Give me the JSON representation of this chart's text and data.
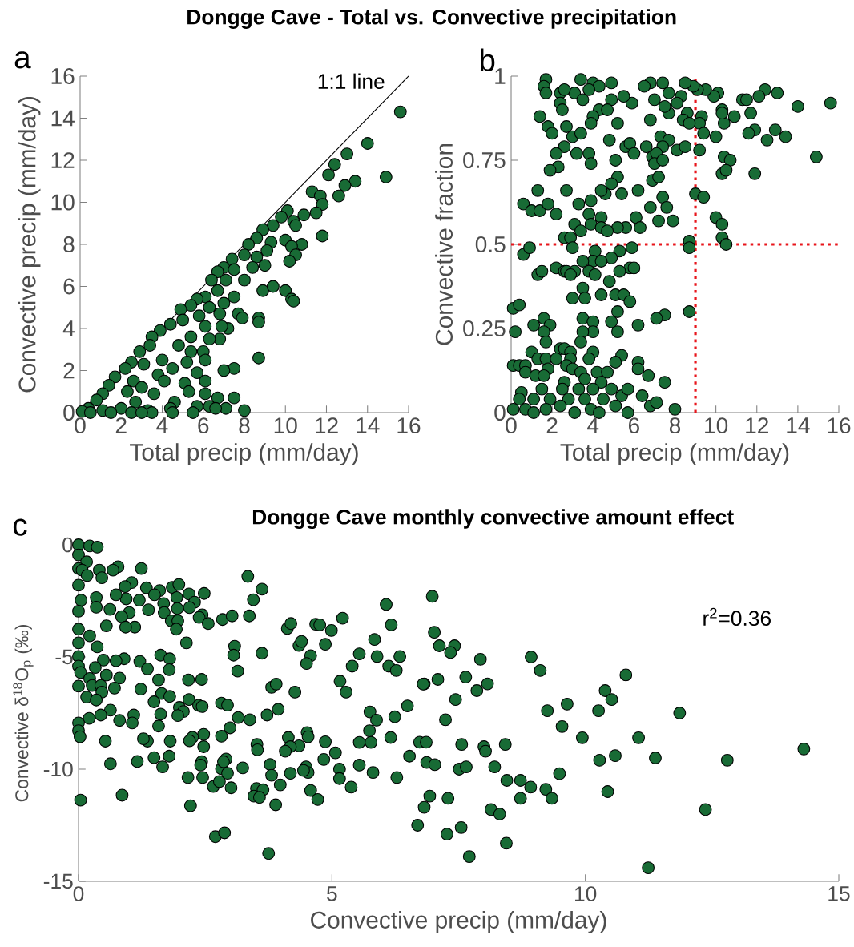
{
  "chart_data": [
    {
      "type": "scatter",
      "title": "Dongge Cave - Total vs. Convective precipitation",
      "xlabel": "Total precip (mm/day)",
      "ylabel": "Convective precip (mm/day)",
      "xlim": [
        0,
        16
      ],
      "ylim": [
        0,
        16
      ],
      "xticks": [
        0,
        2,
        4,
        6,
        8,
        10,
        12,
        14,
        16
      ],
      "yticks": [
        0,
        2,
        4,
        6,
        8,
        10,
        12,
        14,
        16
      ],
      "annotations": [
        "a",
        "1:1 line"
      ],
      "series": [
        {
          "type": "line",
          "marker": "none",
          "color": "#000000",
          "x": [
            0,
            16
          ],
          "values": [
            0,
            16
          ]
        },
        {
          "marker": "circle",
          "color": "#186b35",
          "x": [
            15.6,
            14,
            13,
            12.4,
            12.1,
            14.9,
            13.4,
            12.9,
            12.6,
            11.3,
            11.7,
            11.8,
            11.5,
            10.9,
            10.1,
            10.4,
            10.5,
            9.8,
            9.4,
            8.9,
            11.8,
            10.8,
            10,
            10.3,
            10.5,
            10.2,
            9.3,
            9.1,
            8.6,
            8.2,
            8.6,
            8.0,
            9.0,
            8.4,
            7.4,
            7.0,
            7.5,
            6.7,
            7.1,
            6.4,
            8.0,
            8.9,
            9.4,
            10.0,
            10.3,
            10.4,
            6.7,
            7.5,
            7.0,
            6.1,
            5.7,
            5.4,
            4.9,
            6.3,
            6.8,
            7.7,
            7.9,
            8.7,
            8.7,
            7.2,
            6.9,
            6.1,
            5.8,
            5.0,
            4.4,
            3.9,
            3.5,
            6.8,
            6.3,
            5.4,
            4.8,
            3.4,
            2.9,
            5.4,
            6.0,
            4.0,
            2.5,
            8.7,
            6.1,
            5.2,
            3.1,
            2.2,
            7.5,
            7.0,
            4.5,
            5.7,
            3.8,
            1.7,
            1.4,
            2.6,
            4.1,
            6.1,
            5.1,
            2.3,
            3.0,
            6.1,
            5.3,
            3.6,
            1.1,
            0.8,
            6.7,
            7.5,
            2.7,
            4.6,
            6.3,
            7.1,
            8.0,
            5.7,
            4.4,
            3.3,
            2.0,
            1.1,
            0.4,
            0.1,
            0.5,
            1.5,
            2.5,
            3.5,
            4.5,
            5.5,
            6.6,
            3.0
          ],
          "values": [
            14.3,
            12.8,
            12.3,
            11.8,
            11.3,
            11.2,
            11,
            10.8,
            10.3,
            10.5,
            10.3,
            9.9,
            9.5,
            9.4,
            9.6,
            9.1,
            8.9,
            9.3,
            8.9,
            8.7,
            8.4,
            8.0,
            8.2,
            7.9,
            7.5,
            7.2,
            8.1,
            7.7,
            8.3,
            8.0,
            7.4,
            7.5,
            7.0,
            6.9,
            7.3,
            6.9,
            6.8,
            6.7,
            6.3,
            6.3,
            6.3,
            5.8,
            6.0,
            5.8,
            5.4,
            5.3,
            5.8,
            5.5,
            5.2,
            5.5,
            5.4,
            5.1,
            4.9,
            5.0,
            4.7,
            4.7,
            4.5,
            4.5,
            4.3,
            4.0,
            4.1,
            4.1,
            4.6,
            4.4,
            4.2,
            3.9,
            3.6,
            3.5,
            3.5,
            3.6,
            3.2,
            3.2,
            2.9,
            2.9,
            2.9,
            2.5,
            2.4,
            2.6,
            2.5,
            2.4,
            2.3,
            2.1,
            2.1,
            2.0,
            2.1,
            1.9,
            1.8,
            1.7,
            1.3,
            1.5,
            1.5,
            1.5,
            1.4,
            1.0,
            1.2,
            0.9,
            1.0,
            0.9,
            0.9,
            0.6,
            0.7,
            0.7,
            0.5,
            0.5,
            0.3,
            0.2,
            0.1,
            0.3,
            0.2,
            0.1,
            0.2,
            0.1,
            0.2,
            0.05,
            0,
            0,
            0,
            0,
            0,
            0,
            0.2,
            0
          ]
        }
      ]
    },
    {
      "type": "scatter",
      "xlabel": "Total precip (mm/day)",
      "ylabel": "Convective fraction",
      "xlim": [
        0,
        16
      ],
      "ylim": [
        0,
        1
      ],
      "xticks": [
        0,
        2,
        4,
        6,
        8,
        10,
        12,
        14,
        16
      ],
      "yticks": [
        0,
        0.25,
        0.5,
        0.75,
        1
      ],
      "annotations": [
        "b"
      ],
      "ref_lines": [
        {
          "axis": "x",
          "value": 9,
          "color": "#e8151b",
          "line_style": "dotted"
        },
        {
          "axis": "y",
          "value": 0.5,
          "color": "#e8151b",
          "line_style": "dotted"
        }
      ],
      "series": [
        {
          "marker": "circle",
          "color": "#186b35",
          "x": [
            15.6,
            14,
            14.9,
            13,
            12.4,
            12.1,
            13.4,
            12.9,
            12.5,
            11.3,
            11.5,
            11.7,
            11.9,
            11.6,
            11.9,
            10.9,
            10.4,
            10.3,
            10.3,
            10.0,
            10.4,
            10.7,
            10.3,
            10.5,
            10.1,
            9.9,
            9.5,
            9.1,
            9.3,
            9.2,
            9.4,
            9.2,
            8.9,
            8.5,
            8.3,
            8.1,
            8.6,
            8.4,
            8.7,
            7.4,
            7.0,
            6.8,
            6.5,
            7.7,
            7.7,
            7.5,
            7.3,
            7.7,
            7.4,
            8.1,
            8.5,
            6.8,
            6.6,
            6.9,
            7.1,
            7.0,
            7.4,
            6.9,
            7.2,
            6.2,
            7.4,
            7.6,
            6.8,
            7.9,
            7.2,
            6.1,
            6.3,
            9.0,
            9.4,
            10.0,
            10.3,
            10.3,
            10.5,
            8.7,
            8.7,
            8.7,
            7.5,
            7.1,
            6.2,
            6.2,
            6.7,
            7.5,
            6.2,
            6.4,
            6.8,
            7.1,
            8.0,
            5.9,
            5.5,
            5.2,
            5.6,
            5.8,
            6.0,
            5.1,
            5.2,
            5.4,
            4.6,
            4.4,
            4.9,
            5.8,
            6.0,
            5.9,
            5.6,
            5.2,
            5.3,
            4.9,
            5.3,
            4.8,
            5.1,
            5.5,
            5.8,
            5.2,
            4.9,
            5.2,
            5.4,
            5.1,
            4.0,
            3.4,
            4.9,
            4.3,
            3.8,
            3.1,
            2.4,
            2.6,
            3.5,
            2.4,
            2.5,
            4.3,
            4.0,
            4.9,
            4.7,
            1.7,
            1.6,
            1.7,
            1.4,
            1.8,
            2.0,
            2.7,
            3.0,
            3.4,
            3.9,
            4.8,
            2.6,
            2.2,
            3.2,
            3.8,
            3.9,
            2.3,
            1.9,
            1.3,
            2.7,
            0.6,
            1.0,
            1.4,
            1.8,
            2.2,
            3.3,
            3.8,
            3.9,
            3.1,
            3.4,
            4.4,
            3.9,
            4.4,
            4.7,
            2.6,
            2.9,
            3.0,
            0.6,
            0.9,
            4.1,
            4.0,
            3.5,
            4.4,
            2.2,
            2.6,
            2.7,
            3.1,
            3.8,
            1.3,
            1.5,
            2.9,
            4.1,
            3.5,
            4.4,
            3.0,
            3.6,
            3.5,
            4.0,
            4.0,
            3.5,
            3.4,
            0.1,
            0.4,
            0.2,
            1.1,
            1.6,
            1.9,
            1.6,
            1.7,
            1.0,
            2.4,
            2.6,
            2.9,
            4.0,
            1.3,
            1.7,
            2.2,
            2.9,
            3.8,
            0.1,
            0.4,
            0.7,
            0.7,
            1.8,
            2.7,
            3.0,
            3.4,
            4.2,
            4.7,
            1.2,
            1.6,
            2.6,
            3.6,
            4.4,
            0.5,
            1.5,
            2.5,
            3.3,
            4.0,
            4.9,
            0.4,
            1.1,
            1.9,
            2.8,
            3.6,
            4.5,
            5.4,
            5.7,
            0.1,
            0.7,
            1.1,
            1.7,
            2.4,
            3.1,
            3.9,
            4.3,
            5.1,
            5.7
          ],
          "values": [
            0.92,
            0.91,
            0.76,
            0.95,
            0.96,
            0.94,
            0.82,
            0.84,
            0.81,
            0.93,
            0.93,
            0.89,
            0.84,
            0.83,
            0.71,
            0.88,
            0.86,
            0.9,
            0.89,
            0.82,
            0.76,
            0.75,
            0.71,
            0.72,
            0.95,
            0.94,
            0.96,
            0.96,
            0.88,
            0.86,
            0.83,
            0.78,
            0.97,
            0.98,
            0.94,
            0.92,
            0.89,
            0.87,
            0.86,
            0.98,
            0.93,
            0.98,
            0.97,
            0.95,
            0.89,
            0.91,
            0.82,
            0.81,
            0.79,
            0.78,
            0.79,
            0.87,
            0.79,
            0.76,
            0.77,
            0.74,
            0.75,
            0.69,
            0.7,
            0.66,
            0.64,
            0.61,
            0.61,
            0.57,
            0.57,
            0.58,
            0.55,
            0.65,
            0.64,
            0.58,
            0.56,
            0.52,
            0.5,
            0.51,
            0.49,
            0.3,
            0.29,
            0.28,
            0.26,
            0.15,
            0.11,
            0.09,
            0.13,
            0.05,
            0.02,
            0.03,
            0.01,
            0.92,
            0.94,
            0.86,
            0.79,
            0.8,
            0.77,
            0.75,
            0.7,
            0.65,
            0.65,
            0.66,
            0.68,
            0.43,
            0.43,
            0.49,
            0.55,
            0.55,
            0.48,
            0.46,
            0.42,
            0.39,
            0.35,
            0.35,
            0.33,
            0.3,
            0.27,
            0.24,
            0.17,
            0.15,
            0.98,
            0.99,
            0.98,
            0.97,
            0.96,
            0.95,
            0.95,
            0.96,
            0.93,
            0.92,
            0.9,
            0.9,
            0.88,
            0.93,
            0.9,
            0.99,
            0.97,
            0.95,
            0.88,
            0.85,
            0.83,
            0.85,
            0.82,
            0.83,
            0.86,
            0.81,
            0.79,
            0.77,
            0.77,
            0.77,
            0.74,
            0.73,
            0.72,
            0.66,
            0.66,
            0.62,
            0.6,
            0.6,
            0.62,
            0.59,
            0.62,
            0.59,
            0.63,
            0.56,
            0.54,
            0.58,
            0.56,
            0.55,
            0.54,
            0.52,
            0.52,
            0.49,
            0.47,
            0.49,
            0.48,
            0.45,
            0.45,
            0.45,
            0.43,
            0.42,
            0.42,
            0.42,
            0.42,
            0.41,
            0.42,
            0.41,
            0.41,
            0.37,
            0.35,
            0.34,
            0.34,
            0.28,
            0.27,
            0.24,
            0.24,
            0.21,
            0.31,
            0.32,
            0.24,
            0.26,
            0.28,
            0.26,
            0.24,
            0.21,
            0.18,
            0.19,
            0.19,
            0.18,
            0.18,
            0.16,
            0.16,
            0.16,
            0.16,
            0.16,
            0.14,
            0.14,
            0.14,
            0.12,
            0.13,
            0.14,
            0.13,
            0.12,
            0.12,
            0.12,
            0.11,
            0.11,
            0.09,
            0.1,
            0.09,
            0.06,
            0.07,
            0.07,
            0.07,
            0.07,
            0.07,
            0.04,
            0.04,
            0.04,
            0.04,
            0.04,
            0.04,
            0.05,
            0.07,
            0.01,
            0.01,
            0.0,
            0.01,
            0.02,
            0.0,
            0.01,
            0.0,
            0.02,
            0.0
          ]
        }
      ]
    },
    {
      "type": "scatter",
      "title": "Dongge Cave monthly convective amount effect",
      "xlabel": "Convective precip (mm/day)",
      "ylabel": "Convective δ$^{18}$O$_{p}$ (‰)",
      "xlim": [
        0,
        15
      ],
      "ylim": [
        -15,
        0
      ],
      "xticks": [
        0,
        5,
        10,
        15
      ],
      "yticks": [
        -15,
        -10,
        -5,
        0
      ],
      "annotations": [
        "c",
        "r$^{2}$=0.36"
      ],
      "series": [
        {
          "marker": "circle",
          "color": "#186b35",
          "x": [
            6.98,
            7.02,
            7.12,
            7.42,
            7.34,
            7.93,
            8.93,
            9.11,
            10.8,
            6.82,
            7.09,
            7.64,
            8.07,
            7.86,
            10.39,
            10.52,
            7.44,
            9.64,
            9.25,
            10.26,
            11.86,
            7.24,
            9.54,
            9.94,
            11.05,
            14.31,
            6.73,
            6.86,
            7.56,
            8.0,
            8.03,
            8.42,
            10.59,
            10.28,
            11.38,
            12.8,
            6.87,
            7.03,
            7.51,
            7.65,
            8.21,
            9.49,
            8.45,
            8.72,
            8.92,
            9.22,
            9.34,
            8.72,
            10.44,
            6.93,
            7.29,
            6.82,
            8.14,
            8.31,
            12.37,
            6.69,
            7.27,
            7.55,
            8.44,
            7.71,
            11.24,
            0,
            0.22,
            0.37,
            0,
            0.16,
            0,
            0.07,
            0.41,
            0.78,
            0.68,
            1.24,
            0.17,
            0.46,
            0,
            1.05,
            0.92,
            1.34,
            1.6,
            1.85,
            1.98,
            1.5,
            1.2,
            0.94,
            0.74,
            0.05,
            0.35,
            1.94,
            2.18,
            2.48,
            1.68,
            2.29,
            1.95,
            2.19,
            1.38,
            0.62,
            0.35,
            0,
            1.69,
            1.0,
            0.85,
            2.44,
            2.38,
            2.56,
            2.84,
            3.03,
            3.34,
            3.62,
            3.45,
            3.37,
            1.83,
            1.96,
            1.93,
            1.11,
            0.93,
            0.55,
            0,
            0.22,
            0,
            0.37,
            2.13,
            3.08,
            3.06,
            3.62,
            1.62,
            1.8,
            0.9,
            0.74,
            0.49,
            0,
            0,
            0.33,
            1.21,
            1.36,
            1.79,
            0.04,
            0.55,
            0.81,
            0.22,
            0,
            0.27,
            0.44,
            0.71,
            0.46,
            1.58,
            2.17,
            2.43,
            1.23,
            1.64,
            1.8,
            1.49,
            2.18,
            3.14,
            0.16,
            0.35,
            1.99,
            2.07,
            1.96,
            2.37,
            2.44,
            2.82,
            2.94,
            0.63,
            0.44,
            0.21,
            0,
            0,
            0.03,
            0.81,
            1.09,
            1.06,
            1.62,
            1.58,
            3.15,
            3.38,
            3.72,
            3.94,
            3.81,
            3.9,
            4.27,
            4.12,
            4.19,
            4.35,
            4.4,
            4.58,
            4.5,
            4.87,
            4.68,
            4.76,
            4.99,
            5.21,
            5.16,
            5.28,
            5.4,
            5.54,
            5.84,
            5.89,
            6.07,
            6.17,
            6.12,
            6.27,
            6.34,
            6.49,
            6.8,
            5.75,
            5.88,
            6.24,
            5.74,
            6.16,
            5.54,
            5.77,
            6.53,
            5.54,
            5.81,
            6.28,
            5.38,
            5.15,
            5.15,
            5.07,
            4.87,
            4.84,
            4.51,
            4.53,
            4.35,
            4.14,
            4.18,
            4.08,
            4.49,
            4.53,
            4.44,
            4.18,
            4.58,
            4.72,
            3.78,
            3.81,
            3.98,
            3.52,
            3.53,
            3.24,
            3.51,
            3.64,
            3.46,
            3.57,
            3.89,
            3.75,
            2.7,
            2.88,
            2.21,
            2.66,
            2.78,
            3.01,
            2.82,
            2.94,
            2.91,
            2.86,
            2.82,
            2.99,
            2.47,
            2.47,
            2.25,
            2.19,
            2.43,
            2.41,
            2.45,
            2.16,
            1.81,
            1.79,
            1.66,
            1.49,
            1.36,
            1.28,
            1.16,
            0.63,
            0.53,
            0.86,
            0.04
          ],
          "values": [
            -2.3,
            -3.9,
            -4.5,
            -4.5,
            -4.8,
            -5.1,
            -5.0,
            -5.6,
            -5.8,
            -6.2,
            -6.0,
            -5.9,
            -6.2,
            -6.5,
            -6.5,
            -6.9,
            -6.9,
            -7.1,
            -7.4,
            -7.4,
            -7.5,
            -7.8,
            -8.1,
            -8.6,
            -8.6,
            -9.1,
            -8.8,
            -8.8,
            -8.9,
            -9.0,
            -9.2,
            -8.9,
            -9.4,
            -9.6,
            -9.5,
            -9.6,
            -9.7,
            -9.8,
            -10.0,
            -9.9,
            -9.9,
            -10.2,
            -10.5,
            -10.5,
            -10.8,
            -10.9,
            -11.3,
            -11.3,
            -11.0,
            -11.2,
            -11.3,
            -11.7,
            -11.8,
            -12.0,
            -11.8,
            -12.5,
            -12.9,
            -12.6,
            -13.3,
            -13.9,
            -14.4,
            0,
            -0.05,
            -0.1,
            -0.45,
            -0.76,
            -1.06,
            -1.13,
            -1.13,
            -0.98,
            -1.13,
            -1.06,
            -1.37,
            -1.47,
            -1.8,
            -1.68,
            -1.86,
            -1.92,
            -2.04,
            -1.9,
            -1.77,
            -2.23,
            -2.47,
            -2.41,
            -2.23,
            -2.47,
            -2.35,
            -2.35,
            -2.19,
            -2.17,
            -2.62,
            -2.56,
            -2.84,
            -2.8,
            -2.9,
            -2.88,
            -2.78,
            -2.96,
            -3.02,
            -3.02,
            -3.2,
            -3.12,
            -3.24,
            -3.51,
            -3.33,
            -3.17,
            -1.41,
            -1.98,
            -2.45,
            -3.17,
            -3.39,
            -3.39,
            -3.76,
            -3.67,
            -3.67,
            -3.61,
            -3.76,
            -4.06,
            -4.37,
            -4.55,
            -4.37,
            -4.52,
            -4.92,
            -4.83,
            -4.92,
            -5.08,
            -5.08,
            -5.17,
            -5.14,
            -4.98,
            -5.41,
            -5.47,
            -5.2,
            -5.53,
            -5.57,
            -5.69,
            -5.81,
            -5.94,
            -5.96,
            -6.3,
            -6.27,
            -6.27,
            -6.39,
            -6.57,
            -6.02,
            -6.02,
            -6.0,
            -6.43,
            -6.63,
            -6.76,
            -7.0,
            -6.9,
            -5.63,
            -6.79,
            -6.92,
            -7.25,
            -7.43,
            -7.61,
            -7.16,
            -7.21,
            -7.06,
            -7.15,
            -7.37,
            -7.59,
            -7.74,
            -7.94,
            -8.29,
            -8.56,
            -7.83,
            -7.59,
            -7.94,
            -7.55,
            -8.08,
            -7.7,
            -7.8,
            -7.59,
            -7.33,
            -6.35,
            -6.21,
            -6.57,
            -3.73,
            -3.51,
            -4.49,
            -4.31,
            -4.94,
            -5.29,
            -4.43,
            -3.54,
            -3.57,
            -3.82,
            -3.27,
            -6.08,
            -6.57,
            -5.41,
            -4.86,
            -4.22,
            -4.98,
            -2.66,
            -3.57,
            -5.41,
            -5.6,
            -4.98,
            -7.18,
            -6.21,
            -7.45,
            -7.82,
            -7.67,
            -8.29,
            -8.59,
            -8.81,
            -8.81,
            -9.42,
            -9.82,
            -10.15,
            -10.37,
            -10.8,
            -10.0,
            -10.42,
            -9.27,
            -8.78,
            -9.57,
            -8.37,
            -8.56,
            -8.96,
            -8.59,
            -9.0,
            -9.2,
            -9.9,
            -10.15,
            -10.06,
            -10.18,
            -10.95,
            -11.35,
            -9.79,
            -10.27,
            -10.7,
            -8.9,
            -9.14,
            -9.94,
            -10.86,
            -10.92,
            -11.2,
            -11.26,
            -11.59,
            -13.76,
            -13.01,
            -12.84,
            -11.63,
            -10.77,
            -10.55,
            -10.83,
            -9.98,
            -10.18,
            -9.55,
            -9.67,
            -8.53,
            -8.16,
            -8.45,
            -9.0,
            -8.58,
            -8.74,
            -9.67,
            -9.82,
            -10.37,
            -10.37,
            -8.75,
            -9.42,
            -9.9,
            -9.49,
            -8.75,
            -8.65,
            -9.66,
            -9.76,
            -8.75,
            -11.16,
            -11.38
          ]
        }
      ]
    }
  ]
}
